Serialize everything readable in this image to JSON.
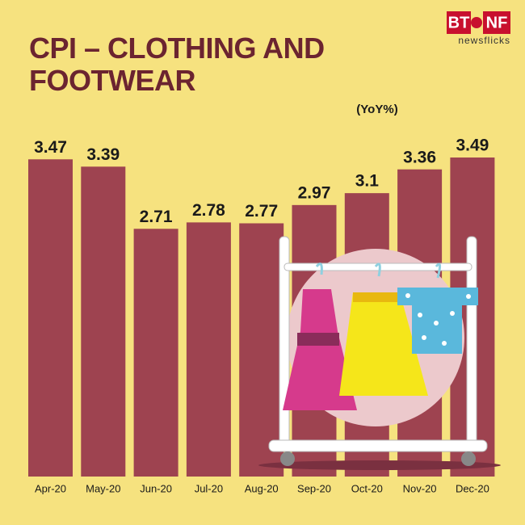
{
  "logo": {
    "left": "BT",
    "right": "NF",
    "tagline": "newsflicks"
  },
  "chart_data": {
    "type": "bar",
    "title": "CPI – CLOTHING AND FOOTWEAR",
    "subtitle": "(YoY%)",
    "categories": [
      "Apr-20",
      "May-20",
      "Jun-20",
      "Jul-20",
      "Aug-20",
      "Sep-20",
      "Oct-20",
      "Nov-20",
      "Dec-20"
    ],
    "values": [
      3.47,
      3.39,
      2.71,
      2.78,
      2.77,
      2.97,
      3.1,
      3.36,
      3.49
    ],
    "color": "#9e4350"
  }
}
